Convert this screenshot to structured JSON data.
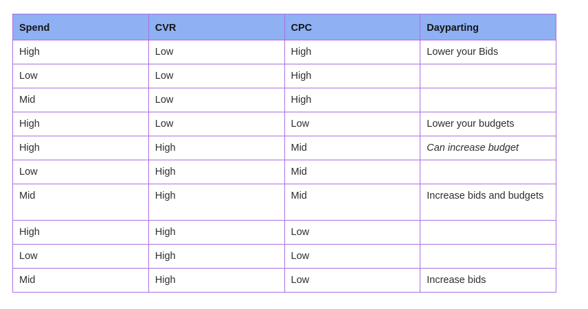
{
  "table": {
    "headers": [
      "Spend",
      "CVR",
      "CPC",
      "Dayparting"
    ],
    "rows": [
      [
        "High",
        "Low",
        "High",
        "Lower your Bids"
      ],
      [
        "Low",
        "Low",
        "High",
        ""
      ],
      [
        "Mid",
        "Low",
        "High",
        ""
      ],
      [
        "High",
        "Low",
        "Low",
        "Lower your budgets"
      ],
      [
        "High",
        "High",
        "Mid",
        "Can increase budget"
      ],
      [
        "Low",
        "High",
        "Mid",
        ""
      ],
      [
        "Mid",
        "High",
        "Mid",
        "Increase bids and budgets"
      ],
      [
        "High",
        "High",
        "Low",
        ""
      ],
      [
        "Low",
        "High",
        "Low",
        ""
      ],
      [
        "Mid",
        "High",
        "Low",
        "Increase bids"
      ]
    ]
  },
  "colors": {
    "header_background": "#8fb0f3",
    "border": "#a86fe0"
  }
}
